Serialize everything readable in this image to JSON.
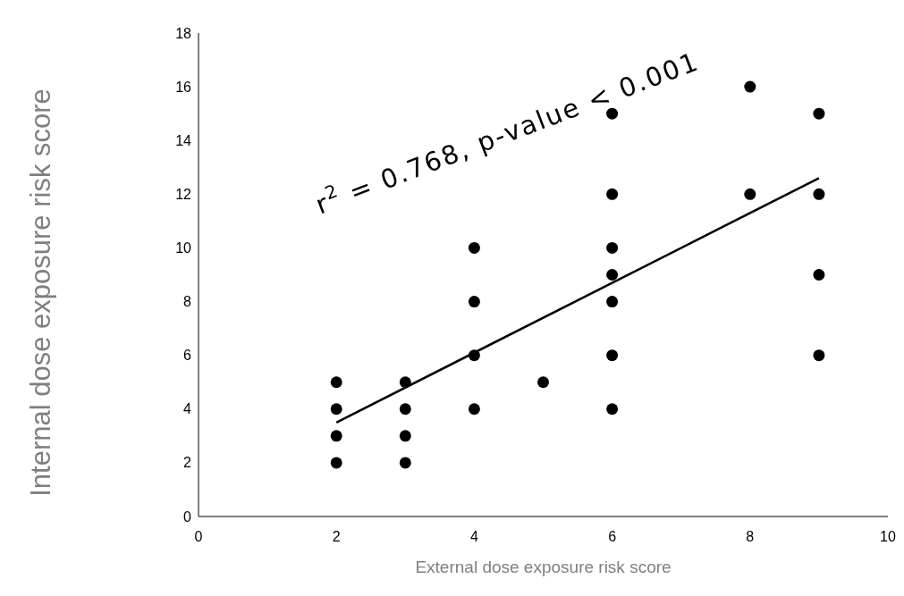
{
  "chart_data": {
    "type": "scatter",
    "xlabel": "External dose exposure risk score",
    "ylabel": "Internal dose exposure risk score",
    "annotations": [
      "r$^{2}$ = 0.768, p-value < 0.001"
    ],
    "xlim": [
      0,
      10
    ],
    "xticks": [
      0,
      2,
      4,
      6,
      8,
      10
    ],
    "ylim": [
      0,
      18
    ],
    "yticks": [
      0,
      2,
      4,
      6,
      8,
      10,
      12,
      14,
      16,
      18
    ],
    "grid": false,
    "marker": "circle",
    "series": [
      {
        "color": "#000000",
        "x": [
          2,
          2,
          2,
          2,
          3,
          3,
          3,
          3,
          4,
          4,
          4,
          4,
          5,
          6,
          6,
          6,
          6,
          6,
          6,
          6,
          8,
          8,
          9,
          9,
          9,
          9
        ],
        "values": [
          5,
          4,
          3,
          2,
          5,
          4,
          3,
          2,
          10,
          8,
          6,
          4,
          5,
          15,
          12,
          10,
          9,
          8,
          6,
          4,
          16,
          12,
          15,
          12,
          9,
          6
        ]
      },
      {
        "type": "line",
        "color": "#000000",
        "x": [
          2,
          9
        ],
        "values": [
          3.5,
          12.6
        ],
        "line_style": "solid",
        "marker": "none"
      }
    ]
  }
}
